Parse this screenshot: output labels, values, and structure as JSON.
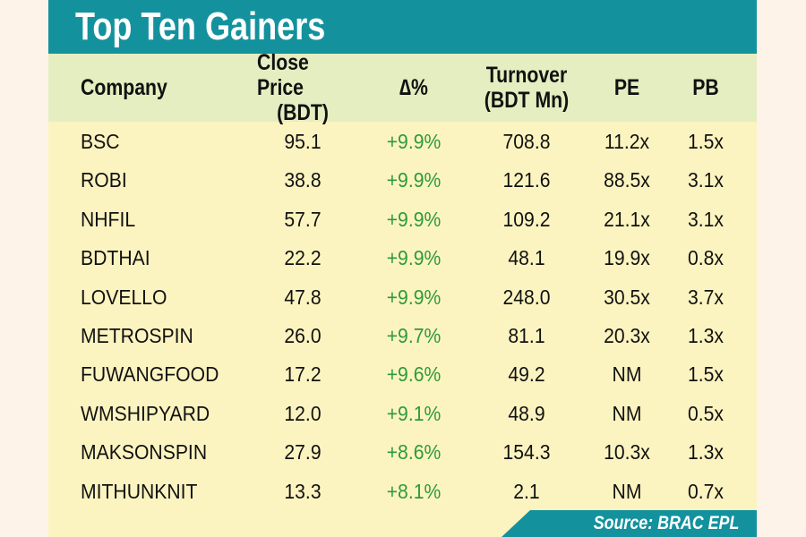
{
  "title": "Top Ten Gainers",
  "columns": [
    {
      "line1": "Company",
      "line2": ""
    },
    {
      "line1": "Close Price",
      "line2": "(BDT)"
    },
    {
      "line1": "∆%",
      "line2": ""
    },
    {
      "line1": "Turnover",
      "line2": "(BDT Mn)"
    },
    {
      "line1": "PE",
      "line2": ""
    },
    {
      "line1": "PB",
      "line2": ""
    }
  ],
  "rows": [
    {
      "company": "BSC",
      "close": "95.1",
      "change": "+9.9%",
      "turnover": "708.8",
      "pe": "11.2x",
      "pb": "1.5x"
    },
    {
      "company": "ROBI",
      "close": "38.8",
      "change": "+9.9%",
      "turnover": "121.6",
      "pe": "88.5x",
      "pb": "3.1x"
    },
    {
      "company": "NHFIL",
      "close": "57.7",
      "change": "+9.9%",
      "turnover": "109.2",
      "pe": "21.1x",
      "pb": "3.1x"
    },
    {
      "company": "BDTHAI",
      "close": "22.2",
      "change": "+9.9%",
      "turnover": "48.1",
      "pe": "19.9x",
      "pb": "0.8x"
    },
    {
      "company": "LOVELLO",
      "close": "47.8",
      "change": "+9.9%",
      "turnover": "248.0",
      "pe": "30.5x",
      "pb": "3.7x"
    },
    {
      "company": "METROSPIN",
      "close": "26.0",
      "change": "+9.7%",
      "turnover": "81.1",
      "pe": "20.3x",
      "pb": "1.3x"
    },
    {
      "company": "FUWANGFOOD",
      "close": "17.2",
      "change": "+9.6%",
      "turnover": "49.2",
      "pe": "NM",
      "pb": "1.5x"
    },
    {
      "company": "WMSHIPYARD",
      "close": "12.0",
      "change": "+9.1%",
      "turnover": "48.9",
      "pe": "NM",
      "pb": "0.5x"
    },
    {
      "company": "MAKSONSPIN",
      "close": "27.9",
      "change": "+8.6%",
      "turnover": "154.3",
      "pe": "10.3x",
      "pb": "1.3x"
    },
    {
      "company": "MITHUNKNIT",
      "close": "13.3",
      "change": "+8.1%",
      "turnover": "2.1",
      "pe": "NM",
      "pb": "0.7x"
    }
  ],
  "source": "Source: BRAC EPL",
  "colors": {
    "teal": "#13929e",
    "header_bg": "#e4eec0",
    "body_bg": "#fcf4c0",
    "gain_green": "#2e9a3c"
  }
}
